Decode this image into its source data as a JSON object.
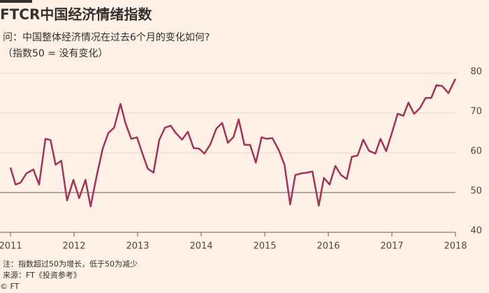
{
  "chart_data": {
    "type": "line",
    "title": "FTCR中国经济情绪指数",
    "subtitle": "问：中国整体经济情况在过去6个月的变化如何?",
    "y_label": "（指数50 = 没有变化）",
    "note": "注：指数超过50为增长，低于50为减少",
    "source": "来源：FT《投资参考》",
    "credit": "© FT",
    "color": "#a0345a",
    "hline": 50,
    "xlim": [
      2011,
      2018
    ],
    "xticks": [
      2011,
      2012,
      2013,
      2014,
      2015,
      2016,
      2017,
      2018
    ],
    "ylim": [
      40,
      80
    ],
    "yticks": [
      40,
      50,
      60,
      70,
      80
    ],
    "grid": true,
    "x": [
      2011.0,
      2011.08,
      2011.16,
      2011.25,
      2011.36,
      2011.45,
      2011.55,
      2011.63,
      2011.71,
      2011.8,
      2011.89,
      2011.99,
      2012.08,
      2012.18,
      2012.26,
      2012.35,
      2012.45,
      2012.54,
      2012.63,
      2012.73,
      2012.81,
      2012.9,
      2012.99,
      2013.08,
      2013.16,
      2013.25,
      2013.34,
      2013.43,
      2013.52,
      2013.6,
      2013.7,
      2013.79,
      2013.88,
      2013.97,
      2014.05,
      2014.14,
      2014.24,
      2014.33,
      2014.42,
      2014.51,
      2014.59,
      2014.68,
      2014.77,
      2014.86,
      2014.95,
      2015.03,
      2015.12,
      2015.22,
      2015.31,
      2015.4,
      2015.48,
      2015.57,
      2015.66,
      2015.75,
      2015.85,
      2015.93,
      2016.02,
      2016.11,
      2016.2,
      2016.29,
      2016.37,
      2016.46,
      2016.55,
      2016.64,
      2016.74,
      2016.82,
      2016.91,
      2017.0,
      2017.09,
      2017.18,
      2017.26,
      2017.35,
      2017.44,
      2017.53,
      2017.62,
      2017.7,
      2017.79,
      2017.89,
      2018.0
    ],
    "values": [
      56.3,
      52,
      52.5,
      54.8,
      55.8,
      52,
      63.5,
      63.2,
      57,
      58,
      48,
      53.2,
      48.6,
      53.2,
      46.5,
      53.7,
      61,
      65,
      66.3,
      72.3,
      67.4,
      63.5,
      63.9,
      59.6,
      56,
      55,
      63.2,
      66.3,
      66.8,
      65,
      63.3,
      65.3,
      61.2,
      61,
      59.8,
      62,
      66.1,
      67.5,
      62.5,
      64,
      68.4,
      62,
      62,
      57.5,
      63.9,
      63.5,
      63.7,
      60.7,
      57,
      47,
      54.4,
      54.8,
      55,
      55.3,
      46.7,
      53.7,
      52,
      56.7,
      54.4,
      53.4,
      59,
      59.3,
      63.3,
      60.5,
      59.8,
      63.5,
      60.4,
      65,
      69.8,
      69.3,
      72.6,
      69.8,
      71.2,
      73.8,
      73.8,
      77,
      76.8,
      75,
      78.6
    ]
  }
}
